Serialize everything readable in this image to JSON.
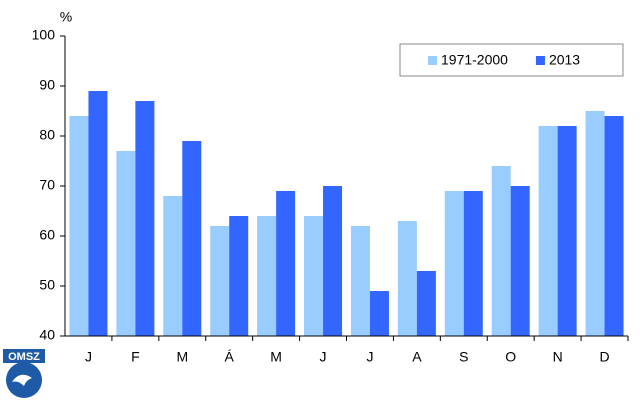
{
  "chart_data": {
    "type": "bar",
    "y_label": "%",
    "categories": [
      "J",
      "F",
      "M",
      "Á",
      "M",
      "J",
      "J",
      "A",
      "S",
      "O",
      "N",
      "D"
    ],
    "series": [
      {
        "name": "1971-2000",
        "color": "#99ccff",
        "values": [
          84,
          77,
          68,
          62,
          64,
          64,
          62,
          63,
          69,
          74,
          82,
          85
        ]
      },
      {
        "name": "2013",
        "color": "#3366ff",
        "values": [
          89,
          87,
          79,
          64,
          69,
          70,
          49,
          53,
          69,
          70,
          82,
          84
        ]
      }
    ],
    "ylim": [
      40,
      100
    ],
    "yticks": [
      40,
      50,
      60,
      70,
      80,
      90,
      100
    ],
    "grid": false,
    "legend": "top-right"
  },
  "logo": {
    "text": "OMSZ"
  }
}
